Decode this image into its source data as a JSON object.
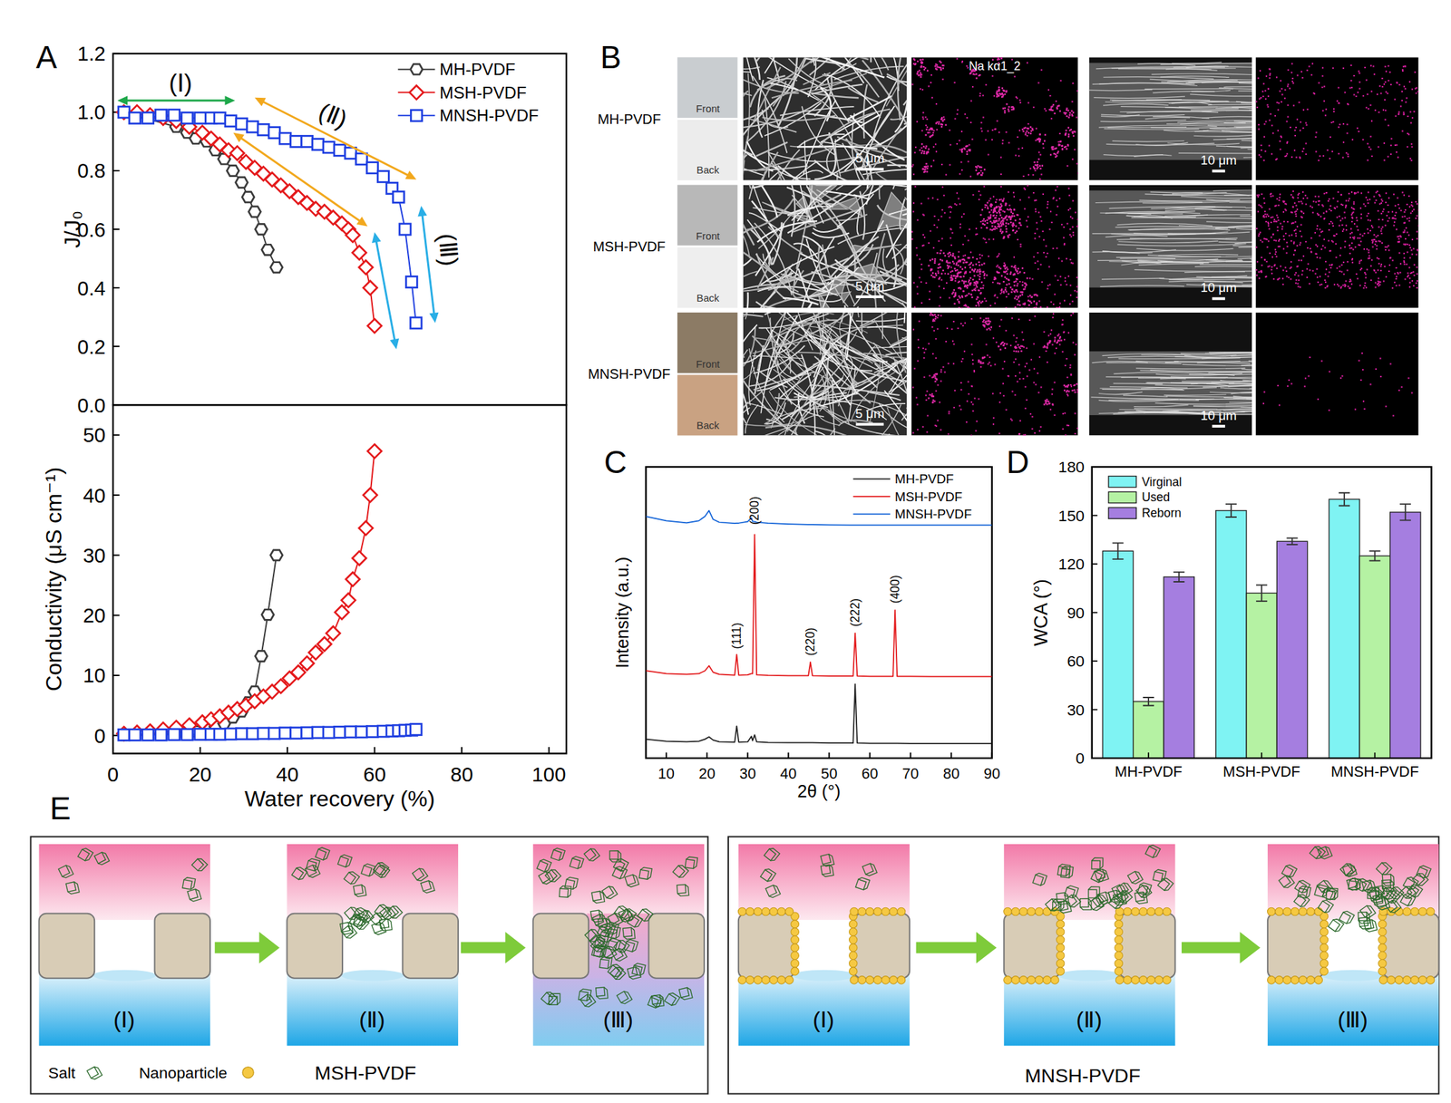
{
  "panel_labels": [
    "A",
    "B",
    "C",
    "D",
    "E"
  ],
  "chart_data": [
    {
      "type": "line",
      "ylabel": "J/J₀",
      "xlim": [
        0,
        104
      ],
      "ylim": [
        0,
        1.2
      ],
      "yticks": [
        {
          "value": 0,
          "label": "0.0"
        },
        0.2,
        0.4,
        0.6,
        0.8,
        {
          "value": 1,
          "label": "1.0"
        },
        1.2
      ],
      "tick_labels": "y",
      "legend": "upper right",
      "series": [
        {
          "name": "MH-PVDF",
          "color": "#3c3c3c",
          "marker": "hexagon",
          "x": [
            2.5,
            14.5,
            17,
            19,
            21.5,
            23.5,
            25.5,
            27.5,
            29.5,
            31,
            32.5,
            34,
            35.5,
            37.5
          ],
          "values": [
            1.0,
            0.95,
            0.93,
            0.91,
            0.9,
            0.87,
            0.84,
            0.8,
            0.76,
            0.71,
            0.66,
            0.6,
            0.53,
            0.47
          ]
        },
        {
          "name": "MSH-PVDF",
          "color": "#e41a1c",
          "marker": "diamond",
          "x": [
            2.5,
            5.5,
            8.5,
            11.5,
            14.5,
            17.5,
            20.5,
            22.5,
            24.5,
            26.5,
            28.5,
            30.5,
            32.5,
            34.5,
            36.5,
            38.5,
            40.5,
            42.5,
            44.5,
            46.5,
            48.5,
            50.5,
            52.5,
            54,
            55,
            56.5,
            58,
            59,
            60
          ],
          "values": [
            1.0,
            1.0,
            0.99,
            0.98,
            0.97,
            0.95,
            0.93,
            0.91,
            0.89,
            0.87,
            0.86,
            0.83,
            0.81,
            0.79,
            0.77,
            0.75,
            0.73,
            0.71,
            0.69,
            0.67,
            0.66,
            0.64,
            0.62,
            0.6,
            0.58,
            0.52,
            0.47,
            0.4,
            0.27
          ]
        },
        {
          "name": "MNSH-PVDF",
          "color": "#1f3fe0",
          "marker": "square",
          "x": [
            2.5,
            5,
            8,
            11,
            14,
            17,
            20,
            22.5,
            24.5,
            27,
            29.5,
            32,
            34.5,
            37,
            39.5,
            42,
            44.5,
            47,
            49.5,
            52,
            54.5,
            57,
            59.5,
            62,
            64,
            65.5,
            67,
            68.5,
            69.5
          ],
          "values": [
            1.0,
            0.98,
            0.98,
            0.99,
            0.99,
            0.98,
            0.98,
            0.98,
            0.98,
            0.97,
            0.96,
            0.95,
            0.94,
            0.93,
            0.91,
            0.9,
            0.9,
            0.89,
            0.88,
            0.87,
            0.86,
            0.84,
            0.81,
            0.78,
            0.74,
            0.71,
            0.6,
            0.42,
            0.28
          ]
        }
      ],
      "annotations": [
        {
          "text": "(Ⅰ)",
          "x": 15.5,
          "y": 1.1
        },
        {
          "text": "(Ⅱ)",
          "x": 50.5,
          "y": 0.99
        },
        {
          "text": "(Ⅲ)",
          "x": 77,
          "y": 0.53
        }
      ]
    },
    {
      "type": "line",
      "xlabel": "Water recovery (%)",
      "ylabel": "Conductivity (μS cm⁻¹)",
      "xlim": [
        0,
        104
      ],
      "ylim": [
        -3,
        55
      ],
      "xticks": [
        0,
        20,
        40,
        60,
        80,
        100
      ],
      "yticks": [
        0,
        10,
        20,
        30,
        40,
        50
      ],
      "series": [
        {
          "name": "MH-PVDF",
          "color": "#3c3c3c",
          "marker": "hexagon",
          "x": [
            2.5,
            14.5,
            17,
            19,
            21.5,
            23.5,
            25.5,
            27.5,
            29.5,
            31,
            32.5,
            34,
            35.5,
            37.5
          ],
          "values": [
            0.1,
            0.3,
            0.5,
            0.7,
            1.0,
            1.5,
            2.0,
            3.0,
            4.0,
            5.5,
            7.3,
            13.2,
            20.1,
            30.0
          ]
        },
        {
          "name": "MSH-PVDF",
          "color": "#e41a1c",
          "marker": "diamond",
          "x": [
            2.5,
            5.5,
            8.5,
            11.5,
            14.5,
            17.5,
            20.5,
            22.5,
            24.5,
            26.5,
            28.5,
            30.5,
            32.5,
            34.5,
            36.5,
            38.5,
            40.5,
            42.5,
            44.5,
            46.5,
            48.5,
            50.5,
            52.5,
            54,
            55,
            56.5,
            58,
            59,
            60
          ],
          "values": [
            0.3,
            0.5,
            0.7,
            1.0,
            1.3,
            1.7,
            2.2,
            2.7,
            3.2,
            3.8,
            4.4,
            5.0,
            5.7,
            6.5,
            7.3,
            8.2,
            9.5,
            10.5,
            12.0,
            13.8,
            15.2,
            17.0,
            20.5,
            22.5,
            26.0,
            29.5,
            34.5,
            40.0,
            47.3
          ]
        },
        {
          "name": "MNSH-PVDF",
          "color": "#1f3fe0",
          "marker": "square",
          "x": [
            2.5,
            5,
            8,
            11,
            14,
            17,
            20,
            22.5,
            24.5,
            27,
            29.5,
            32,
            34.5,
            37,
            39.5,
            42,
            44.5,
            47,
            49.5,
            52,
            54.5,
            57,
            59.5,
            62,
            64,
            65.5,
            67,
            68.5,
            69.5
          ],
          "values": [
            0.1,
            0.1,
            0.1,
            0.1,
            0.15,
            0.15,
            0.2,
            0.2,
            0.2,
            0.25,
            0.3,
            0.3,
            0.35,
            0.35,
            0.4,
            0.4,
            0.45,
            0.5,
            0.5,
            0.55,
            0.6,
            0.6,
            0.65,
            0.7,
            0.75,
            0.8,
            0.85,
            0.9,
            1.0
          ]
        }
      ]
    },
    {
      "type": "line",
      "xlabel": "2θ (°)",
      "ylabel": "Intensity (a.u.)",
      "xlim": [
        5,
        90
      ],
      "ylim": [
        0,
        100
      ],
      "xticks": [
        10,
        20,
        30,
        40,
        50,
        60,
        70,
        80,
        90
      ],
      "tick_labels": "x",
      "legend": "upper right",
      "x": [
        5,
        10,
        15,
        18,
        19.5,
        20.5,
        21.5,
        23,
        26.8,
        27.3,
        27.8,
        30,
        30.9,
        31.2,
        31.7,
        32.2,
        35,
        40,
        44.9,
        45.4,
        45.9,
        50,
        55,
        55.9,
        56.4,
        56.9,
        60,
        65,
        65.7,
        66.2,
        66.7,
        70,
        75,
        80,
        85,
        90
      ],
      "series": [
        {
          "name": "MH-PVDF",
          "color": "#222222",
          "values": [
            6.5,
            5.8,
            5.6,
            5.8,
            6.5,
            7.3,
            6.2,
            5.6,
            5.5,
            11,
            5.5,
            5.6,
            7.5,
            6,
            8,
            5.6,
            5.4,
            5.3,
            5.3,
            5.3,
            5.3,
            5.2,
            5.2,
            5.2,
            25.4,
            5.2,
            5.1,
            5.1,
            5.1,
            5.1,
            5.1,
            5,
            5,
            5,
            5,
            5
          ]
        },
        {
          "name": "MSH-PVDF",
          "color": "#e31a1c",
          "values": [
            30,
            29,
            28.8,
            29,
            30,
            31.7,
            29.5,
            28.8,
            28.5,
            35.6,
            28.5,
            28.6,
            29,
            29,
            76.8,
            28.6,
            28.4,
            28.3,
            28.3,
            33,
            28.3,
            28.2,
            28.2,
            28.2,
            42.9,
            28.2,
            28.1,
            28.1,
            28.1,
            50.8,
            28.1,
            28.1,
            28,
            28,
            28,
            28
          ]
        },
        {
          "name": "MNSH-PVDF",
          "color": "#1565d8",
          "values": [
            83,
            81.5,
            80.8,
            81.5,
            83,
            85,
            82,
            81,
            80.6,
            80.7,
            80.7,
            81.2,
            82.5,
            81.3,
            81.2,
            81,
            80.7,
            80.4,
            80.2,
            80.2,
            80.2,
            80.1,
            80,
            80,
            80,
            80,
            80,
            80,
            80,
            80,
            80,
            80,
            80,
            80,
            80,
            80
          ]
        }
      ],
      "annotations": [
        {
          "text": "(111)",
          "x": 27.3,
          "y": 42
        },
        {
          "text": "(200)",
          "x": 31.7,
          "y": 85
        },
        {
          "text": "(220)",
          "x": 45.4,
          "y": 40
        },
        {
          "text": "(222)",
          "x": 56.4,
          "y": 50
        },
        {
          "text": "(400)",
          "x": 66.2,
          "y": 58
        }
      ]
    },
    {
      "type": "bar",
      "ylabel": "WCA (°)",
      "categories": [
        "MH-PVDF",
        "MSH-PVDF",
        "MNSH-PVDF"
      ],
      "ylim": [
        0,
        180
      ],
      "yticks": [
        0,
        30,
        60,
        90,
        120,
        150,
        180
      ],
      "legend": "upper left",
      "series": [
        {
          "name": "Virginal",
          "color": "#7ff3f3",
          "values": [
            128,
            153,
            160
          ],
          "errors": [
            5,
            4,
            4
          ]
        },
        {
          "name": "Used",
          "color": "#b5f2a3",
          "values": [
            35,
            102,
            125
          ],
          "errors": [
            2.5,
            5,
            3
          ]
        },
        {
          "name": "Reborn",
          "color": "#a57ee0",
          "values": [
            112,
            134,
            152
          ],
          "errors": [
            3,
            2,
            5
          ]
        }
      ]
    }
  ],
  "micrographs": {
    "rows": [
      "MH-PVDF",
      "MSH-PVDF",
      "MNSH-PVDF"
    ],
    "photo_labels": [
      "Front",
      "Back"
    ],
    "eds_label": "Na kα1_2",
    "scale_bars": [
      "5 μm",
      "10 μm"
    ]
  },
  "schematic": {
    "stages": [
      "(Ⅰ)",
      "(Ⅱ)",
      "(Ⅲ)"
    ],
    "panels": [
      "MSH-PVDF",
      "MNSH-PVDF"
    ],
    "keys": [
      "Salt",
      "Nanoparticle"
    ]
  }
}
